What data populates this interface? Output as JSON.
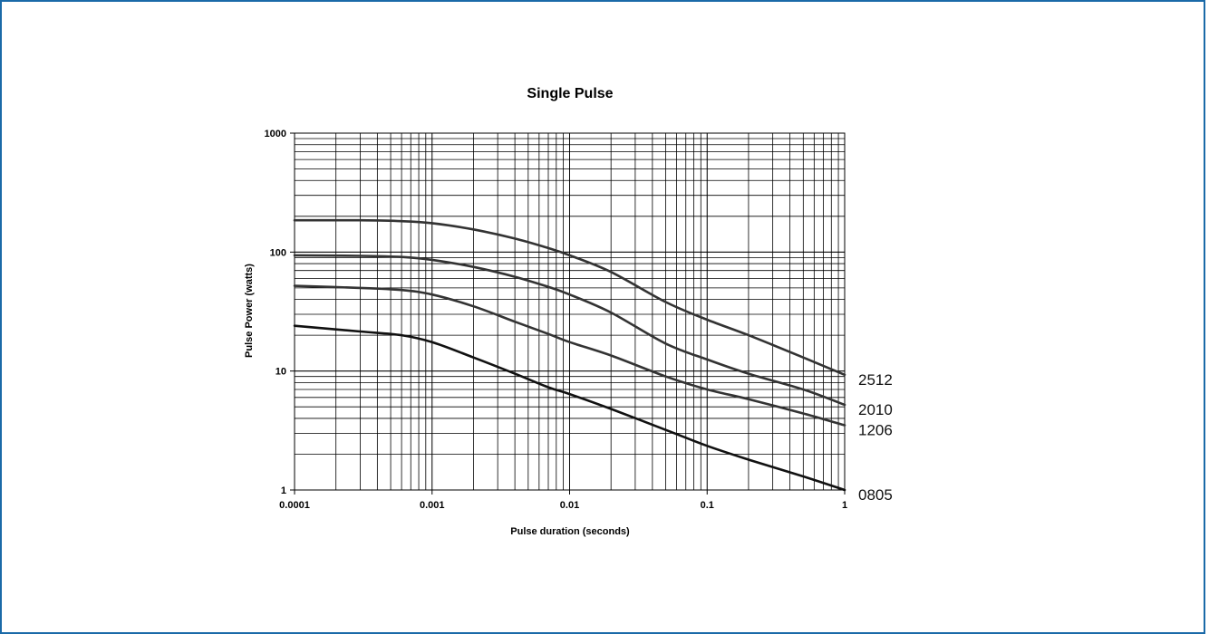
{
  "chart_data": {
    "type": "line",
    "title": "Single Pulse",
    "xlabel": "Pulse duration (seconds)",
    "ylabel": "Pulse Power (watts)",
    "x_scale": "log",
    "y_scale": "log",
    "xlim": [
      0.0001,
      1
    ],
    "ylim": [
      1,
      1000
    ],
    "grid": true,
    "x_ticks": [
      {
        "value": 0.0001,
        "label": "0.0001"
      },
      {
        "value": 0.001,
        "label": "0.001"
      },
      {
        "value": 0.01,
        "label": "0.01"
      },
      {
        "value": 0.1,
        "label": "0.1"
      },
      {
        "value": 1,
        "label": "1"
      }
    ],
    "y_ticks": [
      {
        "value": 1,
        "label": "1"
      },
      {
        "value": 10,
        "label": "10"
      },
      {
        "value": 100,
        "label": "100"
      },
      {
        "value": 1000,
        "label": "1000"
      }
    ],
    "series": [
      {
        "name": "2512",
        "color": "#333333",
        "points": [
          [
            0.0001,
            185
          ],
          [
            0.0003,
            185
          ],
          [
            0.0006,
            182
          ],
          [
            0.001,
            175
          ],
          [
            0.002,
            155
          ],
          [
            0.004,
            130
          ],
          [
            0.007,
            108
          ],
          [
            0.01,
            94
          ],
          [
            0.02,
            68
          ],
          [
            0.05,
            38
          ],
          [
            0.1,
            27
          ],
          [
            0.2,
            20
          ],
          [
            0.5,
            13
          ],
          [
            1,
            9.3
          ]
        ]
      },
      {
        "name": "2010",
        "color": "#333333",
        "points": [
          [
            0.0001,
            94
          ],
          [
            0.0003,
            93
          ],
          [
            0.0006,
            91
          ],
          [
            0.001,
            86
          ],
          [
            0.002,
            75
          ],
          [
            0.004,
            62
          ],
          [
            0.007,
            51
          ],
          [
            0.01,
            44
          ],
          [
            0.02,
            31
          ],
          [
            0.05,
            17
          ],
          [
            0.1,
            12.5
          ],
          [
            0.2,
            9.5
          ],
          [
            0.5,
            7
          ],
          [
            1,
            5.2
          ]
        ]
      },
      {
        "name": "1206",
        "color": "#333333",
        "points": [
          [
            0.0001,
            52
          ],
          [
            0.0003,
            50
          ],
          [
            0.0006,
            48
          ],
          [
            0.001,
            44
          ],
          [
            0.002,
            35
          ],
          [
            0.004,
            26
          ],
          [
            0.007,
            20.5
          ],
          [
            0.01,
            17.5
          ],
          [
            0.02,
            13.5
          ],
          [
            0.05,
            9
          ],
          [
            0.1,
            7
          ],
          [
            0.2,
            5.8
          ],
          [
            0.5,
            4.4
          ],
          [
            1,
            3.5
          ]
        ]
      },
      {
        "name": "0805",
        "color": "#111111",
        "points": [
          [
            0.0001,
            24
          ],
          [
            0.0003,
            21.5
          ],
          [
            0.0006,
            20
          ],
          [
            0.001,
            17.5
          ],
          [
            0.002,
            13
          ],
          [
            0.004,
            9.5
          ],
          [
            0.007,
            7.3
          ],
          [
            0.01,
            6.4
          ],
          [
            0.02,
            4.8
          ],
          [
            0.05,
            3.2
          ],
          [
            0.1,
            2.35
          ],
          [
            0.2,
            1.8
          ],
          [
            0.5,
            1.3
          ],
          [
            1,
            1.0
          ]
        ]
      }
    ]
  }
}
